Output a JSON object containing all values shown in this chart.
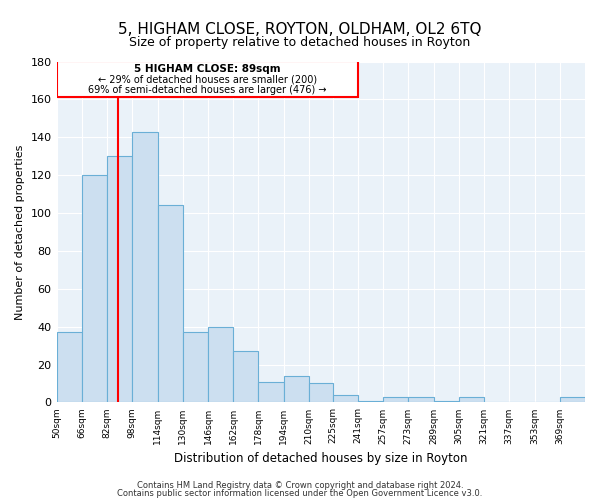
{
  "title": "5, HIGHAM CLOSE, ROYTON, OLDHAM, OL2 6TQ",
  "subtitle": "Size of property relative to detached houses in Royton",
  "xlabel": "Distribution of detached houses by size in Royton",
  "ylabel": "Number of detached properties",
  "bar_values": [
    37,
    120,
    130,
    143,
    104,
    37,
    40,
    27,
    11,
    14,
    10,
    4,
    1,
    3,
    3,
    1,
    3,
    0,
    0,
    0,
    3
  ],
  "bar_labels": [
    "50sqm",
    "66sqm",
    "82sqm",
    "98sqm",
    "114sqm",
    "130sqm",
    "146sqm",
    "162sqm",
    "178sqm",
    "194sqm",
    "210sqm",
    "225sqm",
    "241sqm",
    "257sqm",
    "273sqm",
    "289sqm",
    "305sqm",
    "321sqm",
    "337sqm",
    "353sqm",
    "369sqm"
  ],
  "bin_edges": [
    50,
    66,
    82,
    98,
    114,
    130,
    146,
    162,
    178,
    194,
    210,
    225,
    241,
    257,
    273,
    289,
    305,
    321,
    337,
    353,
    369,
    385
  ],
  "bar_color": "#ccdff0",
  "bar_edge_color": "#6aafd6",
  "bar_face_alpha": 0.6,
  "red_line_x": 89,
  "ylim": [
    0,
    180
  ],
  "yticks": [
    0,
    20,
    40,
    60,
    80,
    100,
    120,
    140,
    160,
    180
  ],
  "annotation_title": "5 HIGHAM CLOSE: 89sqm",
  "annotation_line1": "← 29% of detached houses are smaller (200)",
  "annotation_line2": "69% of semi-detached houses are larger (476) →",
  "footer_line1": "Contains HM Land Registry data © Crown copyright and database right 2024.",
  "footer_line2": "Contains public sector information licensed under the Open Government Licence v3.0.",
  "bg_color": "#eaf2f9"
}
